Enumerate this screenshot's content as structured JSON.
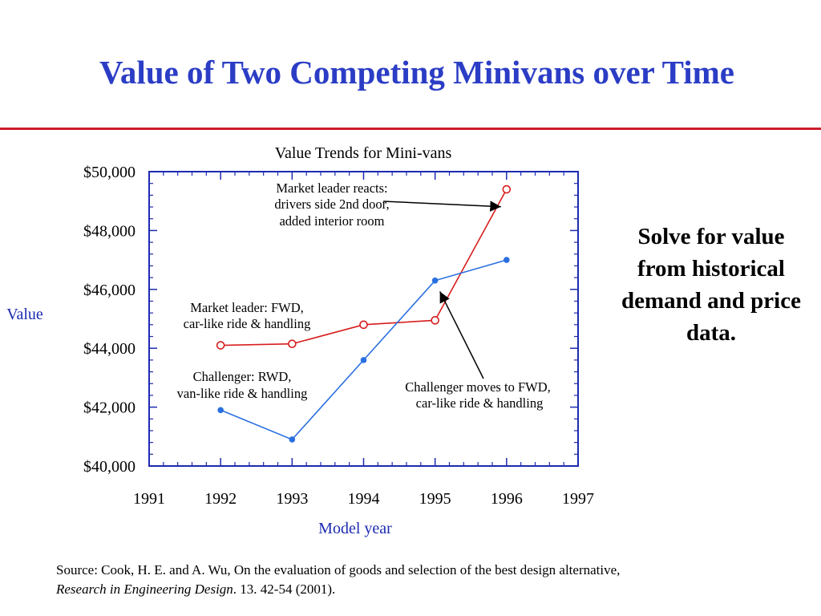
{
  "slide": {
    "title": "Value of Two Competing Minivans over Time",
    "side_note": "Solve for value from historical demand and price data.",
    "source": {
      "prefix": "Source: Cook, H. E. and A. Wu, On the evaluation of goods and selection of the best design alternative, ",
      "journal": "Research in Engineering Design",
      "suffix": ". 13. 42-54 (2001)."
    },
    "colors": {
      "title": "#2b3dc5",
      "rule": "#cc1d2b"
    }
  },
  "chart_data": {
    "type": "line",
    "title": "Value Trends for Mini-vans",
    "xlabel": "Model year",
    "ylabel": "Value",
    "xlim": [
      1991,
      1997
    ],
    "ylim": [
      40000,
      50000
    ],
    "xticks": [
      1991,
      1992,
      1993,
      1994,
      1995,
      1996,
      1997
    ],
    "xtick_labels": [
      "1991",
      "1992",
      "1993",
      "1994",
      "1995",
      "1996",
      "1997"
    ],
    "yticks": [
      40000,
      42000,
      44000,
      46000,
      48000,
      50000
    ],
    "ytick_labels": [
      "$40,000",
      "$42,000",
      "$44,000",
      "$46,000",
      "$48,000",
      "$50,000"
    ],
    "grid": false,
    "series": [
      {
        "color": "#d81e1e",
        "marker": "open-circle",
        "x": [
          1992,
          1993,
          1994,
          1995,
          1996
        ],
        "y": [
          44100,
          44150,
          44800,
          44950,
          49400
        ]
      },
      {
        "color": "#2a6fe0",
        "marker": "filled-dot",
        "x": [
          1992,
          1993,
          1994,
          1995,
          1996
        ],
        "y": [
          41900,
          40900,
          43600,
          46300,
          47000
        ]
      }
    ],
    "annotations": [
      {
        "lines": [
          "Market leader reacts:",
          "drivers side 2nd door,",
          "added interior room"
        ],
        "arrow_to": {
          "x": 1996,
          "y": 49300
        }
      },
      {
        "lines": [
          "Market leader: FWD,",
          "car-like ride & handling"
        ]
      },
      {
        "lines": [
          "Challenger: RWD,",
          "van-like ride & handling"
        ]
      },
      {
        "lines": [
          "Challenger moves to FWD,",
          "car-like ride & handling"
        ],
        "arrow_to": {
          "x": 1995,
          "y": 46200
        }
      }
    ]
  }
}
